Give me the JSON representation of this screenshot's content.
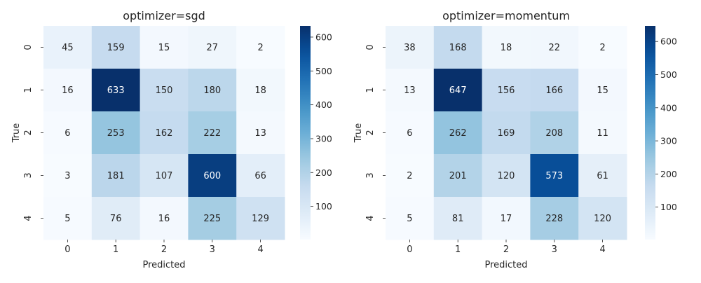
{
  "chart_data": [
    {
      "type": "heatmap",
      "title": "optimizer=sgd",
      "xlabel": "Predicted",
      "ylabel": "True",
      "x_categories": [
        "0",
        "1",
        "2",
        "3",
        "4"
      ],
      "y_categories": [
        "0",
        "1",
        "2",
        "3",
        "4"
      ],
      "values": [
        [
          45,
          159,
          15,
          27,
          2
        ],
        [
          16,
          633,
          150,
          180,
          18
        ],
        [
          6,
          253,
          162,
          222,
          13
        ],
        [
          3,
          181,
          107,
          600,
          66
        ],
        [
          5,
          76,
          16,
          225,
          129
        ]
      ],
      "colorbar": {
        "range": [
          2,
          633
        ],
        "ticks": [
          100,
          200,
          300,
          400,
          500,
          600
        ]
      },
      "colormap": "Blues"
    },
    {
      "type": "heatmap",
      "title": "optimizer=momentum",
      "xlabel": "Predicted",
      "ylabel": "True",
      "x_categories": [
        "0",
        "1",
        "2",
        "3",
        "4"
      ],
      "y_categories": [
        "0",
        "1",
        "2",
        "3",
        "4"
      ],
      "values": [
        [
          38,
          168,
          18,
          22,
          2
        ],
        [
          13,
          647,
          156,
          166,
          15
        ],
        [
          6,
          262,
          169,
          208,
          11
        ],
        [
          2,
          201,
          120,
          573,
          61
        ],
        [
          5,
          81,
          17,
          228,
          120
        ]
      ],
      "colorbar": {
        "range": [
          2,
          647
        ],
        "ticks": [
          100,
          200,
          300,
          400,
          500,
          600
        ]
      },
      "colormap": "Blues"
    }
  ]
}
